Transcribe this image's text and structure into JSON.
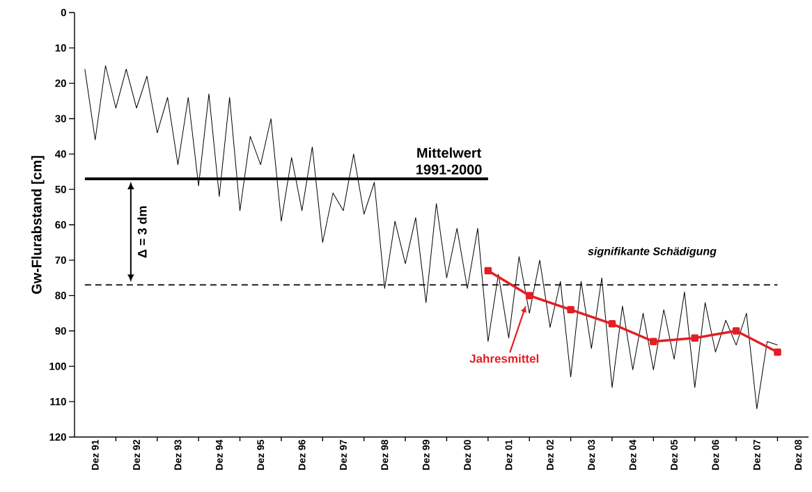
{
  "chart_data": {
    "type": "line",
    "ylabel": "Gw-Flurabstand [cm]",
    "xlim": [
      "1991-06",
      "2009-03"
    ],
    "ylim": [
      120,
      0
    ],
    "yticks": [
      0,
      10,
      20,
      30,
      40,
      50,
      60,
      70,
      80,
      90,
      100,
      110,
      120
    ],
    "xticks": [
      {
        "value": "1991-12",
        "label": "Dez 91"
      },
      {
        "value": "1992-12",
        "label": "Dez 92"
      },
      {
        "value": "1993-12",
        "label": "Dez 93"
      },
      {
        "value": "1994-12",
        "label": "Dez 94"
      },
      {
        "value": "1995-12",
        "label": "Dez 95"
      },
      {
        "value": "1996-12",
        "label": "Dez 96"
      },
      {
        "value": "1997-12",
        "label": "Dez 97"
      },
      {
        "value": "1998-12",
        "label": "Dez 98"
      },
      {
        "value": "1999-12",
        "label": "Dez 99"
      },
      {
        "value": "2000-12",
        "label": "Dez 00"
      },
      {
        "value": "2001-12",
        "label": "Dez 01"
      },
      {
        "value": "2002-12",
        "label": "Dez 02"
      },
      {
        "value": "2003-12",
        "label": "Dez 03"
      },
      {
        "value": "2004-12",
        "label": "Dez 04"
      },
      {
        "value": "2005-12",
        "label": "Dez 05"
      },
      {
        "value": "2006-12",
        "label": "Dez 06"
      },
      {
        "value": "2007-12",
        "label": "Dez 07"
      },
      {
        "value": "2008-12",
        "label": "Dez 08"
      },
      {
        "value": "1992-06",
        "label": null
      },
      {
        "value": "1993-06",
        "label": null
      },
      {
        "value": "1994-06",
        "label": null
      },
      {
        "value": "1995-06",
        "label": null
      },
      {
        "value": "1996-06",
        "label": null
      },
      {
        "value": "1997-06",
        "label": null
      },
      {
        "value": "1998-06",
        "label": null
      },
      {
        "value": "1999-06",
        "label": null
      },
      {
        "value": "2000-06",
        "label": null
      },
      {
        "value": "2001-06",
        "label": null
      },
      {
        "value": "2002-06",
        "label": null
      },
      {
        "value": "2003-06",
        "label": null
      },
      {
        "value": "2004-06",
        "label": null
      },
      {
        "value": "2005-06",
        "label": null
      },
      {
        "value": "2006-06",
        "label": null
      },
      {
        "value": "2007-06",
        "label": null
      },
      {
        "value": "2008-06",
        "label": null
      }
    ],
    "marker": "none",
    "line_style": "solid",
    "series": [
      {
        "color": "#000000",
        "x": [
          "1991-09",
          "1991-12",
          "1992-03",
          "1992-06",
          "1992-09",
          "1992-12",
          "1993-03",
          "1993-06",
          "1993-09",
          "1993-12",
          "1994-03",
          "1994-06",
          "1994-09",
          "1994-12",
          "1995-03",
          "1995-06",
          "1995-09",
          "1995-12",
          "1996-03",
          "1996-06",
          "1996-09",
          "1996-12",
          "1997-03",
          "1997-06",
          "1997-09",
          "1997-12",
          "1998-03",
          "1998-06",
          "1998-09",
          "1998-12",
          "1999-03",
          "1999-06",
          "1999-09",
          "1999-12",
          "2000-03",
          "2000-06",
          "2000-09",
          "2000-12",
          "2001-03",
          "2001-06",
          "2001-09",
          "2001-12",
          "2002-03",
          "2002-06",
          "2002-09",
          "2002-12",
          "2003-03",
          "2003-06",
          "2003-09",
          "2003-12",
          "2004-03",
          "2004-06",
          "2004-09",
          "2004-12",
          "2005-03",
          "2005-06",
          "2005-09",
          "2005-12",
          "2006-03",
          "2006-06",
          "2006-09",
          "2006-12",
          "2007-03",
          "2007-06",
          "2007-09",
          "2007-12",
          "2008-03",
          "2008-06"
        ],
        "values": [
          16,
          36,
          15,
          27,
          16,
          27,
          18,
          34,
          24,
          43,
          24,
          49,
          23,
          52,
          24,
          56,
          35,
          43,
          30,
          59,
          41,
          56,
          38,
          65,
          51,
          56,
          40,
          57,
          48,
          78,
          59,
          71,
          58,
          82,
          54,
          75,
          61,
          78,
          61,
          93,
          74,
          92,
          69,
          85,
          70,
          89,
          76,
          103,
          76,
          95,
          75,
          106,
          83,
          101,
          85,
          101,
          84,
          98,
          79,
          106,
          82,
          96,
          87,
          94,
          85,
          112,
          93,
          94
        ]
      },
      {
        "name": "Mittelwert 1991-2000",
        "color": "#000000",
        "x": [
          "1991-09",
          "2001-06"
        ],
        "values": [
          47,
          47
        ]
      },
      {
        "name": "signifikante Schädigung",
        "color": "#000000",
        "line_style": "dashed",
        "x": [
          "1991-09",
          "2008-06"
        ],
        "values": [
          77,
          77
        ]
      },
      {
        "name": "Jahresmittel",
        "color": "#e31e24",
        "marker": "square",
        "x": [
          "2001-06",
          "2002-06",
          "2003-06",
          "2004-06",
          "2005-06",
          "2006-06",
          "2007-06",
          "2008-06"
        ],
        "values": [
          73,
          80,
          84,
          88,
          93,
          92,
          90,
          96
        ]
      }
    ],
    "annotations": [
      "Δ = 3 dm"
    ]
  }
}
